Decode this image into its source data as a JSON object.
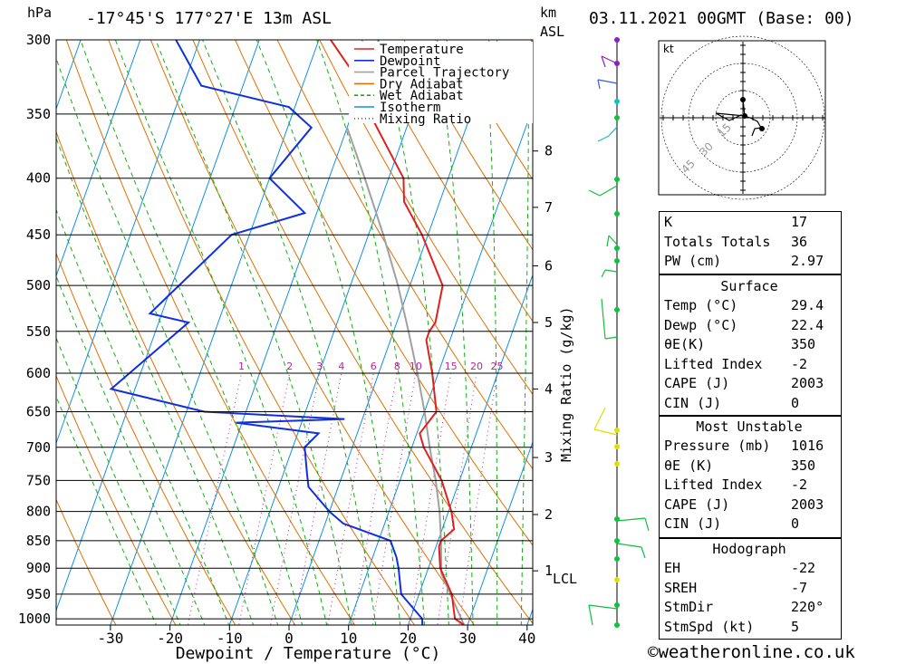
{
  "header": {
    "location": "-17°45'S 177°27'E 13m ASL",
    "datetime": "03.11.2021 00GMT (Base: 00)",
    "pressure_unit": "hPa",
    "height_unit": "km",
    "height_unit2": "ASL",
    "footer": "©weatheronline.co.uk"
  },
  "chart_data": {
    "type": "skew-t",
    "title": "-17°45'S 177°27'E 13m ASL",
    "xlabel": "Dewpoint / Temperature (°C)",
    "ylabel": "hPa",
    "right_axis_label": "Mixing Ratio (g/kg)",
    "x_ticks": [
      -30,
      -20,
      -10,
      0,
      10,
      20,
      30,
      40
    ],
    "p_ticks": [
      300,
      350,
      400,
      450,
      500,
      550,
      600,
      650,
      700,
      750,
      800,
      850,
      900,
      950,
      1000
    ],
    "height_ticks_km": [
      {
        "label": "8",
        "p": 378
      },
      {
        "label": "7",
        "p": 425
      },
      {
        "label": "6",
        "p": 480
      },
      {
        "label": "5",
        "p": 540
      },
      {
        "label": "4",
        "p": 620
      },
      {
        "label": "3",
        "p": 715
      },
      {
        "label": "2",
        "p": 805
      },
      {
        "label": "1",
        "p": 905
      }
    ],
    "lcl_label": "LCL",
    "lcl_pressure": 910,
    "mixing_ratio_labels": [
      "1",
      "2",
      "3",
      "4",
      "6",
      "8",
      "10",
      "15",
      "20",
      "25"
    ],
    "legend": [
      {
        "name": "Temperature",
        "color": "#e02020",
        "style": "solid"
      },
      {
        "name": "Dewpoint",
        "color": "#1030e0",
        "style": "solid"
      },
      {
        "name": "Parcel Trajectory",
        "color": "#a0a0a0",
        "style": "solid"
      },
      {
        "name": "Dry Adiabat",
        "color": "#e07000",
        "style": "solid"
      },
      {
        "name": "Wet Adiabat",
        "color": "#10b010",
        "style": "dashed"
      },
      {
        "name": "Isotherm",
        "color": "#1090e0",
        "style": "solid"
      },
      {
        "name": "Mixing Ratio",
        "color": "#c0209a",
        "style": "dotted"
      }
    ],
    "temperature": [
      {
        "p": 1013,
        "t": 29.4
      },
      {
        "p": 1000,
        "t": 27.5
      },
      {
        "p": 950,
        "t": 25.5
      },
      {
        "p": 900,
        "t": 22.0
      },
      {
        "p": 860,
        "t": 20.5
      },
      {
        "p": 850,
        "t": 20.5
      },
      {
        "p": 830,
        "t": 22.0
      },
      {
        "p": 800,
        "t": 20.5
      },
      {
        "p": 750,
        "t": 17.0
      },
      {
        "p": 700,
        "t": 12.0
      },
      {
        "p": 680,
        "t": 10.5
      },
      {
        "p": 660,
        "t": 11.5
      },
      {
        "p": 650,
        "t": 12.0
      },
      {
        "p": 600,
        "t": 9.0
      },
      {
        "p": 560,
        "t": 6.0
      },
      {
        "p": 550,
        "t": 6.0
      },
      {
        "p": 540,
        "t": 6.5
      },
      {
        "p": 500,
        "t": 5.5
      },
      {
        "p": 450,
        "t": -1.0
      },
      {
        "p": 420,
        "t": -6.0
      },
      {
        "p": 400,
        "t": -7.5
      },
      {
        "p": 350,
        "t": -17.0
      },
      {
        "p": 330,
        "t": -20.0
      },
      {
        "p": 300,
        "t": -28.0
      }
    ],
    "dewpoint": [
      {
        "p": 1013,
        "t": 22.4
      },
      {
        "p": 1000,
        "t": 22.0
      },
      {
        "p": 950,
        "t": 17.0
      },
      {
        "p": 900,
        "t": 15.0
      },
      {
        "p": 880,
        "t": 14.0
      },
      {
        "p": 850,
        "t": 12.0
      },
      {
        "p": 820,
        "t": 3.0
      },
      {
        "p": 800,
        "t": 0.0
      },
      {
        "p": 760,
        "t": -5.0
      },
      {
        "p": 740,
        "t": -6.0
      },
      {
        "p": 700,
        "t": -8.0
      },
      {
        "p": 680,
        "t": -6.5
      },
      {
        "p": 665,
        "t": -21.0
      },
      {
        "p": 660,
        "t": -3.0
      },
      {
        "p": 650,
        "t": -27.0
      },
      {
        "p": 620,
        "t": -44.0
      },
      {
        "p": 540,
        "t": -35.0
      },
      {
        "p": 530,
        "t": -42.0
      },
      {
        "p": 450,
        "t": -33.0
      },
      {
        "p": 430,
        "t": -22.0
      },
      {
        "p": 400,
        "t": -30.0
      },
      {
        "p": 360,
        "t": -26.0
      },
      {
        "p": 345,
        "t": -31.0
      },
      {
        "p": 330,
        "t": -47.0
      },
      {
        "p": 300,
        "t": -54.0
      }
    ],
    "parcel": [
      {
        "p": 1013,
        "t": 29.4
      },
      {
        "p": 910,
        "t": 22.5
      },
      {
        "p": 850,
        "t": 20.5
      },
      {
        "p": 800,
        "t": 18.5
      },
      {
        "p": 750,
        "t": 16.0
      },
      {
        "p": 700,
        "t": 13.0
      },
      {
        "p": 650,
        "t": 10.0
      },
      {
        "p": 600,
        "t": 6.5
      },
      {
        "p": 550,
        "t": 2.5
      },
      {
        "p": 500,
        "t": -2.0
      },
      {
        "p": 450,
        "t": -7.5
      },
      {
        "p": 400,
        "t": -14.0
      },
      {
        "p": 360,
        "t": -20.0
      }
    ],
    "hodograph": {
      "unit_label": "kt",
      "ring_labels": [
        "15",
        "30",
        "45"
      ]
    }
  },
  "indices": {
    "basic": [
      {
        "label": "K",
        "value": "17"
      },
      {
        "label": "Totals Totals",
        "value": "36"
      },
      {
        "label": "PW (cm)",
        "value": "2.97"
      }
    ],
    "surface": {
      "title": "Surface",
      "rows": [
        {
          "label": "Temp (°C)",
          "value": "29.4"
        },
        {
          "label": "Dewp (°C)",
          "value": "22.4"
        },
        {
          "label": "θE(K)",
          "value": "350"
        },
        {
          "label": "Lifted Index",
          "value": "-2"
        },
        {
          "label": "CAPE (J)",
          "value": "2003"
        },
        {
          "label": "CIN (J)",
          "value": "0"
        }
      ]
    },
    "most_unstable": {
      "title": "Most Unstable",
      "rows": [
        {
          "label": "Pressure (mb)",
          "value": "1016"
        },
        {
          "label": "θE (K)",
          "value": "350"
        },
        {
          "label": "Lifted Index",
          "value": "-2"
        },
        {
          "label": "CAPE (J)",
          "value": "2003"
        },
        {
          "label": "CIN (J)",
          "value": "0"
        }
      ]
    },
    "hodograph": {
      "title": "Hodograph",
      "rows": [
        {
          "label": "EH",
          "value": "-22"
        },
        {
          "label": "SREH",
          "value": "-7"
        },
        {
          "label": "StmDir",
          "value": "220°"
        },
        {
          "label": "StmSpd (kt)",
          "value": "5"
        }
      ]
    }
  }
}
